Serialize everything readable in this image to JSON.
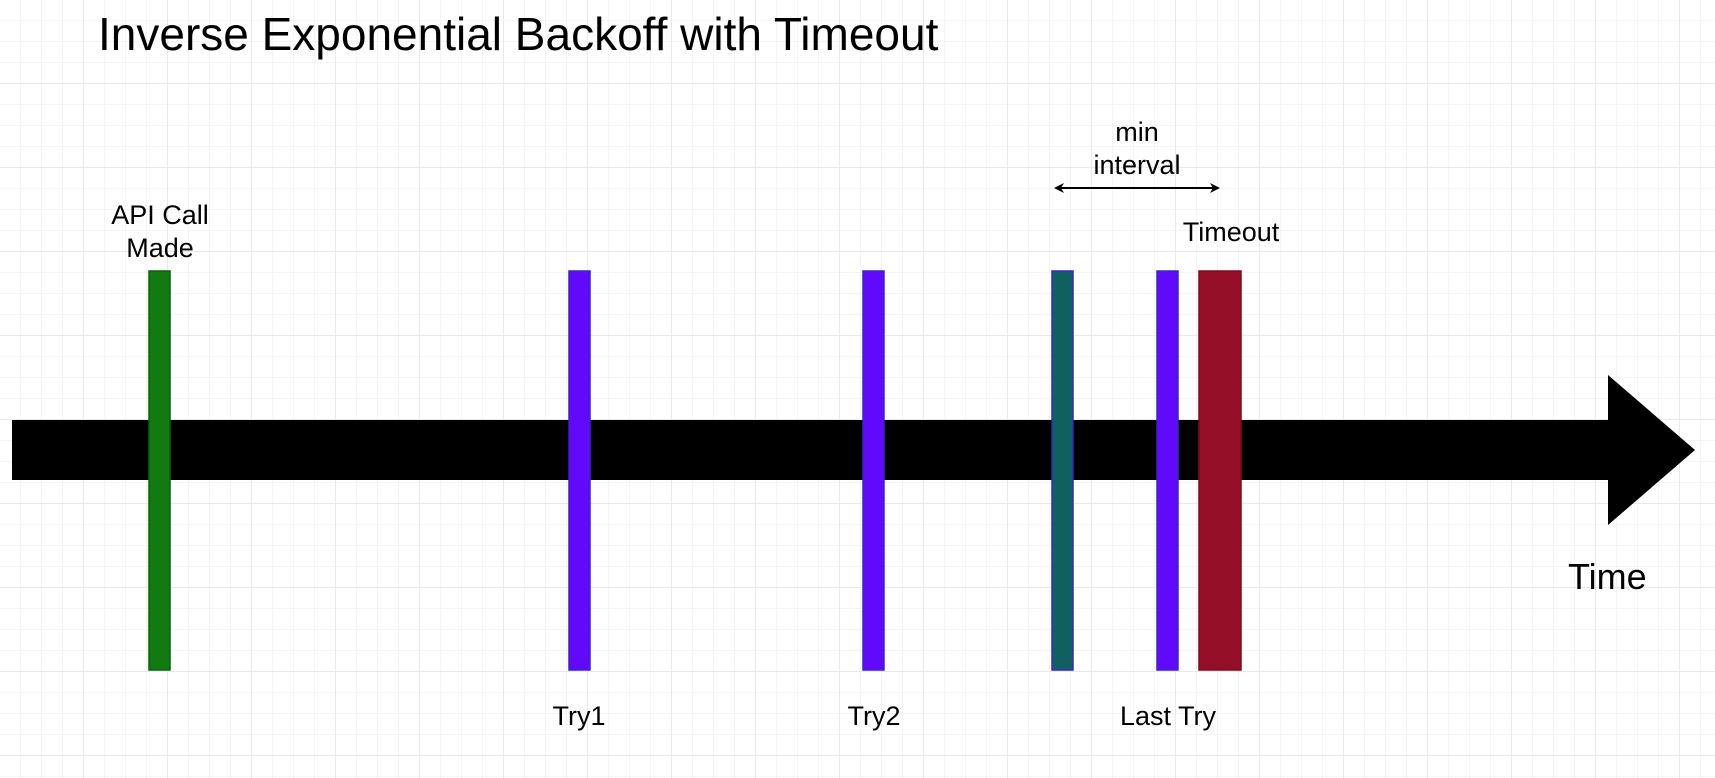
{
  "diagram": {
    "title": "Inverse Exponential Backoff with Timeout",
    "axis_label": "Time",
    "min_interval_label": "min\ninterval",
    "events": [
      {
        "id": "api-call",
        "label": "API Call\nMade",
        "color": "#117a11"
      },
      {
        "id": "try1",
        "label": "Try1",
        "color": "#6109fb"
      },
      {
        "id": "try2",
        "label": "Try2",
        "color": "#6109fb"
      },
      {
        "id": "min-interval-start",
        "label": "",
        "color": "#116060"
      },
      {
        "id": "last-try",
        "label": "Last Try",
        "color": "#6109fb"
      },
      {
        "id": "timeout",
        "label": "Timeout",
        "color": "#960f28"
      }
    ],
    "colors": {
      "arrow": "#000000",
      "bar_border_blue": "#3a22c8",
      "timeout_border": "#7a0a1f",
      "api_border": "#0b5f0b"
    }
  }
}
